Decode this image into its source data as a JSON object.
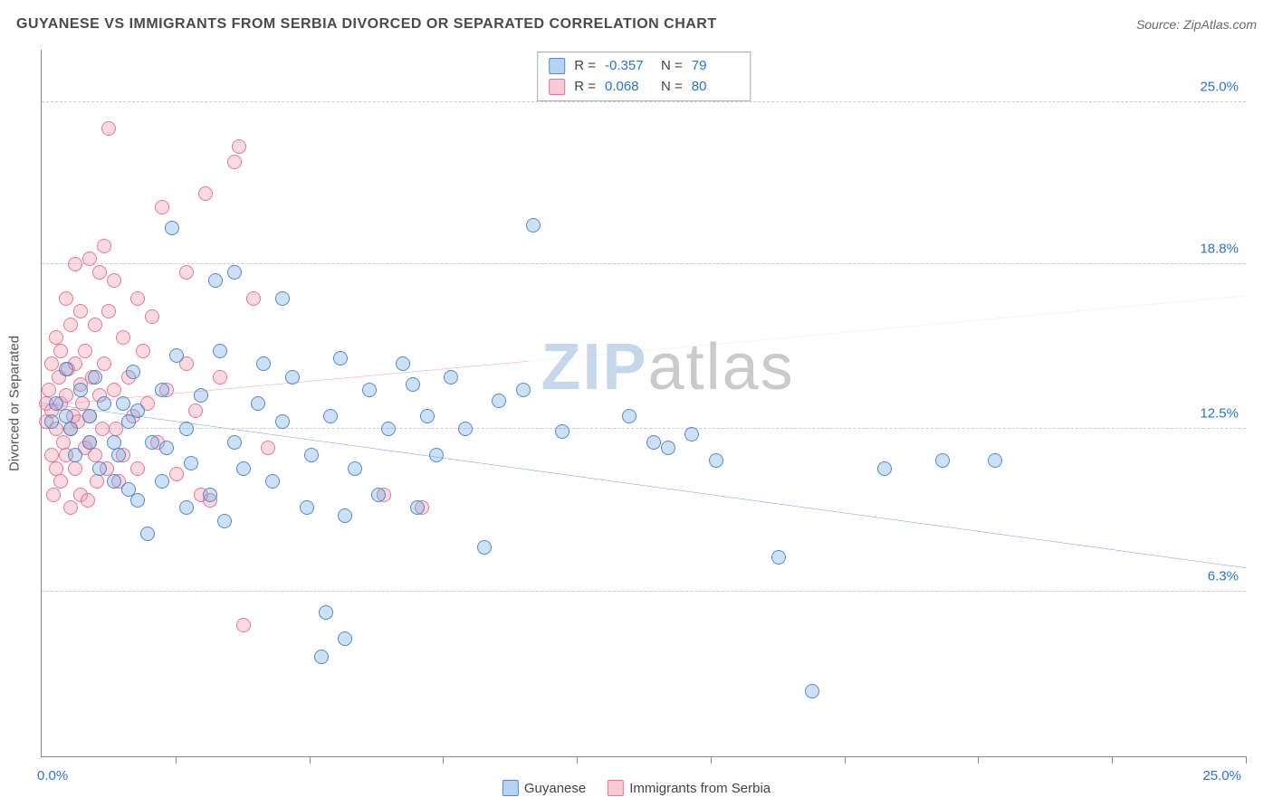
{
  "title": "GUYANESE VS IMMIGRANTS FROM SERBIA DIVORCED OR SEPARATED CORRELATION CHART",
  "source": "Source: ZipAtlas.com",
  "y_axis_title": "Divorced or Separated",
  "watermark": {
    "zip": "ZIP",
    "atlas": "atlas"
  },
  "axes": {
    "xlim": [
      0,
      25
    ],
    "ylim": [
      0,
      27
    ],
    "x_min_label": "0.0%",
    "x_max_label": "25.0%",
    "y_ticks": [
      {
        "value": 6.3,
        "label": "6.3%"
      },
      {
        "value": 12.5,
        "label": "12.5%"
      },
      {
        "value": 18.8,
        "label": "18.8%"
      },
      {
        "value": 25.0,
        "label": "25.0%"
      }
    ],
    "x_tick_positions": [
      2.78,
      5.56,
      8.33,
      11.11,
      13.89,
      16.67,
      19.44,
      22.22,
      25.0
    ],
    "grid_color": "#cccccc"
  },
  "stats": {
    "series1": {
      "R_label": "R =",
      "R": "-0.357",
      "N_label": "N =",
      "N": "79"
    },
    "series2": {
      "R_label": "R =",
      "R": " 0.068",
      "N_label": "N =",
      "N": "80"
    }
  },
  "legend": {
    "series1": "Guyanese",
    "series2": "Immigrants from Serbia"
  },
  "colors": {
    "series1_fill": "rgba(110,170,230,0.35)",
    "series1_stroke": "#4682c8",
    "series2_fill": "rgba(240,150,170,0.35)",
    "series2_stroke": "#e66e8c",
    "trend1": "#2874d4",
    "trend2": "#e66e8c",
    "axis_text": "#2874d4"
  },
  "trend_lines": {
    "series1": {
      "x1": 0,
      "y1": 13.5,
      "x2": 25,
      "y2": 7.2,
      "dashed_from_x": null
    },
    "series2": {
      "x1": 0,
      "y1": 13.4,
      "x2": 25,
      "y2": 17.6,
      "dashed_from_x": 10.1
    }
  },
  "series1_points": [
    [
      0.2,
      12.8
    ],
    [
      0.3,
      13.5
    ],
    [
      0.5,
      13.0
    ],
    [
      0.6,
      12.5
    ],
    [
      0.7,
      11.5
    ],
    [
      0.8,
      14.0
    ],
    [
      0.5,
      14.8
    ],
    [
      1.0,
      12.0
    ],
    [
      1.0,
      13.0
    ],
    [
      1.1,
      14.5
    ],
    [
      1.2,
      11.0
    ],
    [
      1.3,
      13.5
    ],
    [
      1.5,
      12.0
    ],
    [
      1.5,
      10.5
    ],
    [
      1.6,
      11.5
    ],
    [
      1.7,
      13.5
    ],
    [
      1.8,
      10.2
    ],
    [
      1.8,
      12.8
    ],
    [
      1.9,
      14.7
    ],
    [
      2.0,
      9.8
    ],
    [
      2.0,
      13.2
    ],
    [
      2.2,
      8.5
    ],
    [
      2.3,
      12.0
    ],
    [
      2.5,
      10.5
    ],
    [
      2.5,
      14.0
    ],
    [
      2.6,
      11.8
    ],
    [
      2.7,
      20.2
    ],
    [
      2.8,
      15.3
    ],
    [
      3.0,
      9.5
    ],
    [
      3.0,
      12.5
    ],
    [
      3.1,
      11.2
    ],
    [
      3.3,
      13.8
    ],
    [
      3.5,
      10.0
    ],
    [
      3.6,
      18.2
    ],
    [
      3.7,
      15.5
    ],
    [
      3.8,
      9.0
    ],
    [
      4.0,
      12.0
    ],
    [
      4.0,
      18.5
    ],
    [
      4.2,
      11.0
    ],
    [
      4.5,
      13.5
    ],
    [
      4.6,
      15.0
    ],
    [
      4.8,
      10.5
    ],
    [
      5.0,
      12.8
    ],
    [
      5.0,
      17.5
    ],
    [
      5.2,
      14.5
    ],
    [
      5.5,
      9.5
    ],
    [
      5.6,
      11.5
    ],
    [
      5.8,
      3.8
    ],
    [
      6.0,
      13.0
    ],
    [
      6.2,
      15.2
    ],
    [
      6.3,
      9.2
    ],
    [
      6.5,
      11.0
    ],
    [
      6.8,
      14.0
    ],
    [
      7.0,
      10.0
    ],
    [
      7.2,
      12.5
    ],
    [
      7.5,
      15.0
    ],
    [
      7.7,
      14.2
    ],
    [
      7.8,
      9.5
    ],
    [
      8.0,
      13.0
    ],
    [
      8.2,
      11.5
    ],
    [
      8.5,
      14.5
    ],
    [
      8.8,
      12.5
    ],
    [
      9.2,
      8.0
    ],
    [
      9.5,
      13.6
    ],
    [
      10.0,
      14.0
    ],
    [
      10.2,
      20.3
    ],
    [
      10.8,
      12.4
    ],
    [
      12.2,
      13.0
    ],
    [
      12.7,
      12.0
    ],
    [
      13.0,
      11.8
    ],
    [
      13.5,
      12.3
    ],
    [
      14.0,
      11.3
    ],
    [
      15.3,
      7.6
    ],
    [
      16.0,
      2.5
    ],
    [
      17.5,
      11.0
    ],
    [
      18.7,
      11.3
    ],
    [
      19.8,
      11.3
    ],
    [
      6.3,
      4.5
    ],
    [
      5.9,
      5.5
    ]
  ],
  "series2_points": [
    [
      0.1,
      13.5
    ],
    [
      0.1,
      12.8
    ],
    [
      0.15,
      14.0
    ],
    [
      0.2,
      11.5
    ],
    [
      0.2,
      15.0
    ],
    [
      0.2,
      13.2
    ],
    [
      0.25,
      10.0
    ],
    [
      0.3,
      12.5
    ],
    [
      0.3,
      16.0
    ],
    [
      0.3,
      11.0
    ],
    [
      0.35,
      14.5
    ],
    [
      0.4,
      13.5
    ],
    [
      0.4,
      10.5
    ],
    [
      0.4,
      15.5
    ],
    [
      0.45,
      12.0
    ],
    [
      0.5,
      17.5
    ],
    [
      0.5,
      11.5
    ],
    [
      0.5,
      13.8
    ],
    [
      0.55,
      14.8
    ],
    [
      0.6,
      9.5
    ],
    [
      0.6,
      12.5
    ],
    [
      0.6,
      16.5
    ],
    [
      0.65,
      13.0
    ],
    [
      0.7,
      15.0
    ],
    [
      0.7,
      11.0
    ],
    [
      0.7,
      18.8
    ],
    [
      0.75,
      12.8
    ],
    [
      0.8,
      14.2
    ],
    [
      0.8,
      10.0
    ],
    [
      0.8,
      17.0
    ],
    [
      0.85,
      13.5
    ],
    [
      0.9,
      11.8
    ],
    [
      0.9,
      15.5
    ],
    [
      0.95,
      9.8
    ],
    [
      1.0,
      13.0
    ],
    [
      1.0,
      19.0
    ],
    [
      1.0,
      12.0
    ],
    [
      1.05,
      14.5
    ],
    [
      1.1,
      11.5
    ],
    [
      1.1,
      16.5
    ],
    [
      1.15,
      10.5
    ],
    [
      1.2,
      18.5
    ],
    [
      1.2,
      13.8
    ],
    [
      1.25,
      12.5
    ],
    [
      1.3,
      15.0
    ],
    [
      1.3,
      19.5
    ],
    [
      1.35,
      11.0
    ],
    [
      1.4,
      17.0
    ],
    [
      1.4,
      24.0
    ],
    [
      1.5,
      14.0
    ],
    [
      1.5,
      18.2
    ],
    [
      1.55,
      12.5
    ],
    [
      1.6,
      10.5
    ],
    [
      1.7,
      16.0
    ],
    [
      1.7,
      11.5
    ],
    [
      1.8,
      14.5
    ],
    [
      1.9,
      13.0
    ],
    [
      2.0,
      17.5
    ],
    [
      2.0,
      11.0
    ],
    [
      2.1,
      15.5
    ],
    [
      2.2,
      13.5
    ],
    [
      2.3,
      16.8
    ],
    [
      2.4,
      12.0
    ],
    [
      2.5,
      21.0
    ],
    [
      2.6,
      14.0
    ],
    [
      2.8,
      10.8
    ],
    [
      3.0,
      15.0
    ],
    [
      3.0,
      18.5
    ],
    [
      3.2,
      13.2
    ],
    [
      3.3,
      10.0
    ],
    [
      3.4,
      21.5
    ],
    [
      3.5,
      9.8
    ],
    [
      3.7,
      14.5
    ],
    [
      4.0,
      22.7
    ],
    [
      4.1,
      23.3
    ],
    [
      4.2,
      5.0
    ],
    [
      4.4,
      17.5
    ],
    [
      4.7,
      11.8
    ],
    [
      7.1,
      10.0
    ],
    [
      7.9,
      9.5
    ]
  ]
}
